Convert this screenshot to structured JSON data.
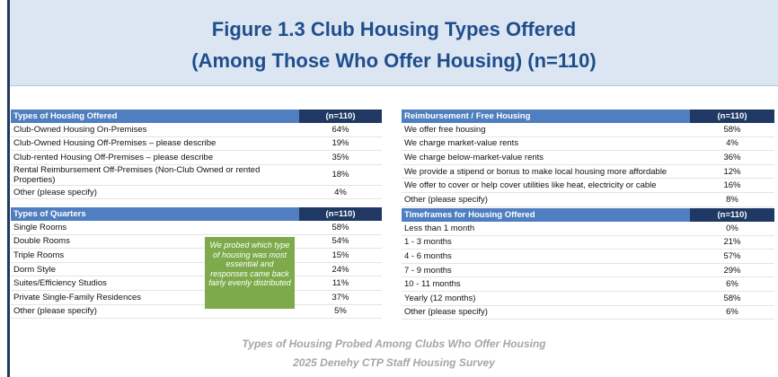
{
  "header": {
    "title_line_1": "Figure 1.3 Club Housing Types Offered",
    "title_line_2": "(Among Those Who Offer Housing) (n=110)"
  },
  "tables": [
    {
      "header": [
        "Types of Housing Offered",
        "(n=110)"
      ],
      "rows": [
        [
          "Club-Owned Housing On-Premises",
          "64%"
        ],
        [
          "Club-Owned Housing Off-Premises – please describe",
          "19%"
        ],
        [
          "Club-rented Housing Off-Premises – please describe",
          "35%"
        ],
        [
          "Rental Reimbursement Off-Premises (Non-Club Owned or rented Properties)",
          "18%"
        ],
        [
          "Other (please specify)",
          "4%"
        ]
      ]
    },
    {
      "header": [
        "Types of Quarters",
        "(n=110)"
      ],
      "rows": [
        [
          "Single Rooms",
          "58%"
        ],
        [
          "Double Rooms",
          "54%"
        ],
        [
          "Triple Rooms",
          "15%"
        ],
        [
          "Dorm Style",
          "24%"
        ],
        [
          "Suites/Efficiency Studios",
          "11%"
        ],
        [
          "Private Single-Family Residences",
          "37%"
        ],
        [
          "Other (please specify)",
          "5%"
        ]
      ]
    },
    {
      "header": [
        "Reimbursement / Free Housing",
        "(n=110)"
      ],
      "rows": [
        [
          "We offer free housing",
          "58%"
        ],
        [
          "We charge market-value rents",
          "4%"
        ],
        [
          "We charge below-market-value rents",
          "36%"
        ],
        [
          "We provide a stipend or bonus to make local housing more affordable",
          "12%"
        ],
        [
          "We offer to cover or help cover utilities like heat, electricity or cable",
          "16%"
        ],
        [
          "Other (please specify)",
          "8%"
        ]
      ]
    },
    {
      "header": [
        "Timeframes for Housing Offered",
        "(n=110)"
      ],
      "rows": [
        [
          "Less than 1 month",
          "0%"
        ],
        [
          "1 - 3 months",
          "21%"
        ],
        [
          "4 - 6 months",
          "57%"
        ],
        [
          "7 - 9 months",
          "29%"
        ],
        [
          "10 - 11 months",
          "6%"
        ],
        [
          "Yearly (12 months)",
          "58%"
        ],
        [
          "Other (please specify)",
          "6%"
        ]
      ]
    }
  ],
  "callout": "We probed which type of housing was most essential and responses came back fairly evenly distributed",
  "footer": {
    "line_1": "Types of Housing Probed Among Clubs Who Offer Housing",
    "line_2": "2025 Denehy CTP Staff Housing Survey"
  }
}
